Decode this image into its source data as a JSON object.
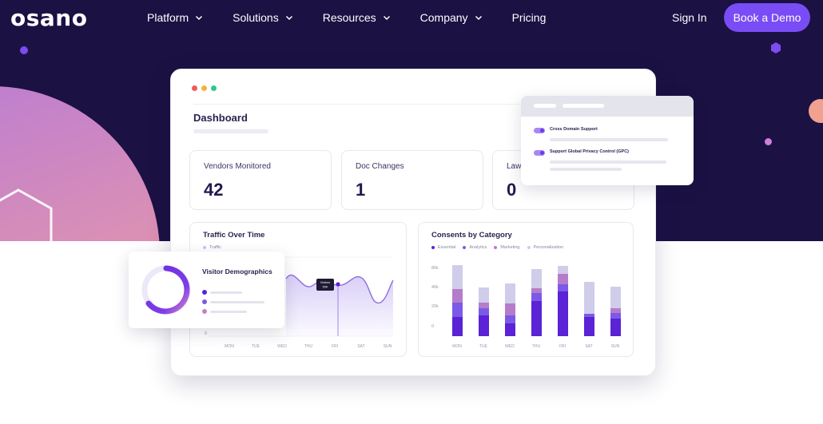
{
  "brand": {
    "logo_text": "osano"
  },
  "nav": {
    "items": [
      {
        "label": "Platform",
        "has_dropdown": true
      },
      {
        "label": "Solutions",
        "has_dropdown": true
      },
      {
        "label": "Resources",
        "has_dropdown": true
      },
      {
        "label": "Company",
        "has_dropdown": true
      },
      {
        "label": "Pricing",
        "has_dropdown": false
      }
    ],
    "sign_in": "Sign In",
    "cta": "Book a Demo"
  },
  "dashboard": {
    "title": "Dashboard",
    "stats": [
      {
        "label": "Vendors Monitored",
        "value": "42"
      },
      {
        "label": "Doc Changes",
        "value": "1"
      },
      {
        "label": "Laws",
        "value": "0"
      }
    ],
    "traffic": {
      "title": "Traffic Over Time",
      "legend": "Traffic",
      "y_tick": "0",
      "x_labels": [
        "MON",
        "TUE",
        "WED",
        "THU",
        "FRI",
        "SAT",
        "SUN"
      ],
      "tooltip_line1": "Visitors",
      "tooltip_line2": "50K"
    },
    "consents": {
      "title": "Consents by Category",
      "legend": [
        {
          "label": "Essential",
          "color": "#5b22d6"
        },
        {
          "label": "Analytics",
          "color": "#7a5ae6"
        },
        {
          "label": "Marketing",
          "color": "#b57ccc"
        },
        {
          "label": "Personalization",
          "color": "#cfcdea"
        }
      ],
      "y_ticks": [
        "80k",
        "40k",
        "20k",
        "0"
      ],
      "x_labels": [
        "MON",
        "TUE",
        "WED",
        "THU",
        "FRI",
        "SAT",
        "SUN"
      ]
    }
  },
  "settings": {
    "rows": [
      {
        "label": "Cross Domain Support",
        "enabled": true
      },
      {
        "label": "Support Global Privacy Control (GPC)",
        "enabled": true
      }
    ]
  },
  "visitor": {
    "title": "Visitor Demographics",
    "dot_colors": [
      "#5b22d6",
      "#7a5ae6",
      "#c77fc4"
    ]
  },
  "colors": {
    "hero_bg": "#1b1143",
    "accent": "#7a4cf5",
    "traffic_lights": [
      "#f05a5a",
      "#f4b33c",
      "#2cc98a"
    ]
  }
}
